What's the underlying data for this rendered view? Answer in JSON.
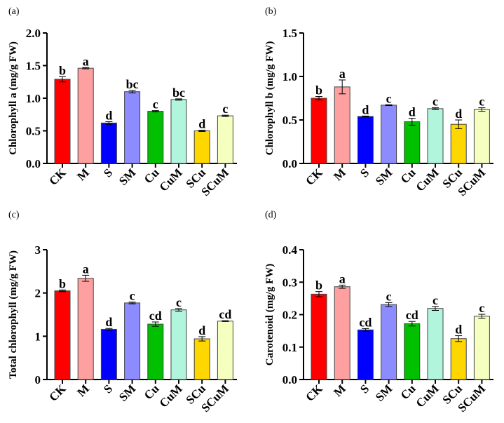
{
  "chart_data": [
    {
      "type": "bar",
      "panel": "(a)",
      "ylabel": "Chlorophyll a (mg/g FW)",
      "ylim": [
        0,
        2.0
      ],
      "yticks": [
        "0.0",
        "0.5",
        "1.0",
        "1.5",
        "2.0"
      ],
      "ytick_values": [
        0,
        0.5,
        1,
        1.5,
        2
      ],
      "categories": [
        "CK",
        "M",
        "S",
        "SM",
        "Cu",
        "CuM",
        "SCu",
        "SCuM"
      ],
      "values": [
        1.29,
        1.46,
        0.62,
        1.1,
        0.8,
        0.98,
        0.5,
        0.73
      ],
      "errors": [
        0.04,
        0.01,
        0.02,
        0.02,
        0.01,
        0.01,
        0.01,
        0.01
      ],
      "letters": [
        "b",
        "a",
        "d",
        "bc",
        "c",
        "bc",
        "d",
        "c"
      ]
    },
    {
      "type": "bar",
      "panel": "(b)",
      "ylabel": "Chlorophyll b (mg/g FW)",
      "ylim": [
        0,
        1.5
      ],
      "yticks": [
        "0.0",
        "0.5",
        "1.0",
        "1.5"
      ],
      "ytick_values": [
        0,
        0.5,
        1,
        1.5
      ],
      "categories": [
        "CK",
        "M",
        "S",
        "SM",
        "Cu",
        "CuM",
        "SCu",
        "SCuM"
      ],
      "values": [
        0.75,
        0.88,
        0.54,
        0.67,
        0.48,
        0.63,
        0.45,
        0.62
      ],
      "errors": [
        0.02,
        0.08,
        0.005,
        0.005,
        0.04,
        0.01,
        0.05,
        0.02
      ],
      "letters": [
        "b",
        "a",
        "d",
        "c",
        "d",
        "c",
        "d",
        "c"
      ]
    },
    {
      "type": "bar",
      "panel": "(c)",
      "ylabel": "Total chlorophyll (mg/g FW)",
      "ylim": [
        0,
        3
      ],
      "yticks": [
        "0",
        "1",
        "2",
        "3"
      ],
      "ytick_values": [
        0,
        1,
        2,
        3
      ],
      "categories": [
        "CK",
        "M",
        "S",
        "SM",
        "Cu",
        "CuM",
        "SCu",
        "SCuM"
      ],
      "values": [
        2.05,
        2.34,
        1.16,
        1.77,
        1.28,
        1.61,
        0.94,
        1.35
      ],
      "errors": [
        0.02,
        0.07,
        0.02,
        0.02,
        0.05,
        0.03,
        0.05,
        0.01
      ],
      "letters": [
        "b",
        "a",
        "d",
        "c",
        "cd",
        "c",
        "d",
        "cd"
      ]
    },
    {
      "type": "bar",
      "panel": "(d)",
      "ylabel": "Carotenoid (mg/g FW)",
      "ylim": [
        0,
        0.4
      ],
      "yticks": [
        "0.0",
        "0.1",
        "0.2",
        "0.3",
        "0.4"
      ],
      "ytick_values": [
        0,
        0.1,
        0.2,
        0.3,
        0.4
      ],
      "categories": [
        "CK",
        "M",
        "S",
        "SM",
        "Cu",
        "CuM",
        "SCu",
        "SCuM"
      ],
      "values": [
        0.263,
        0.286,
        0.153,
        0.231,
        0.172,
        0.219,
        0.126,
        0.195
      ],
      "errors": [
        0.008,
        0.005,
        0.004,
        0.006,
        0.007,
        0.006,
        0.009,
        0.006
      ],
      "letters": [
        "b",
        "a",
        "cd",
        "c",
        "cd",
        "c",
        "d",
        "c"
      ]
    }
  ],
  "colors": [
    "#ff0000",
    "#ffa0a0",
    "#0000ff",
    "#8c8cff",
    "#00c000",
    "#b0f5dc",
    "#ffd700",
    "#f5ffc0"
  ]
}
